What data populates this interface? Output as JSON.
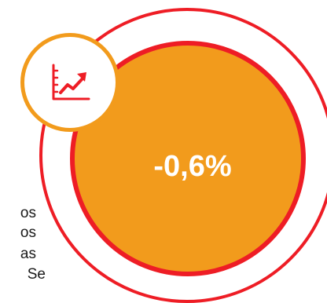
{
  "side_text": {
    "lines": [
      "os",
      "os",
      "as",
      "Se"
    ]
  },
  "stat": {
    "value": "-0,6%"
  },
  "icon": {
    "name": "trend-up-chart-icon"
  },
  "colors": {
    "ring": "#ee1d25",
    "fill": "#f29b1c",
    "background": "#ffffff",
    "text": "#1a1a1a"
  }
}
